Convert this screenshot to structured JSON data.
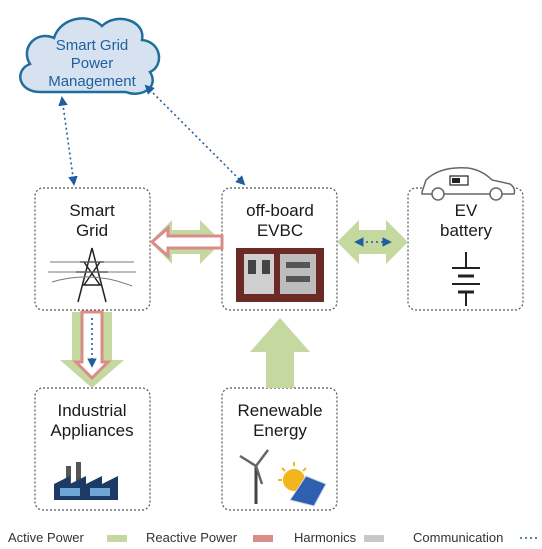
{
  "cloud": {
    "label": [
      "Smart Grid",
      "Power",
      "Management"
    ]
  },
  "nodes": [
    {
      "label": [
        "Smart",
        "Grid"
      ]
    },
    {
      "label": [
        "off-board",
        "EVBC"
      ]
    },
    {
      "label": [
        "EV",
        "battery"
      ]
    },
    {
      "label": [
        "Industrial",
        "Appliances"
      ]
    },
    {
      "label": [
        "Renewable",
        "Energy"
      ]
    }
  ],
  "legend": [
    "Active Power",
    "Reactive Power",
    "Harmonics",
    "Communication"
  ]
}
